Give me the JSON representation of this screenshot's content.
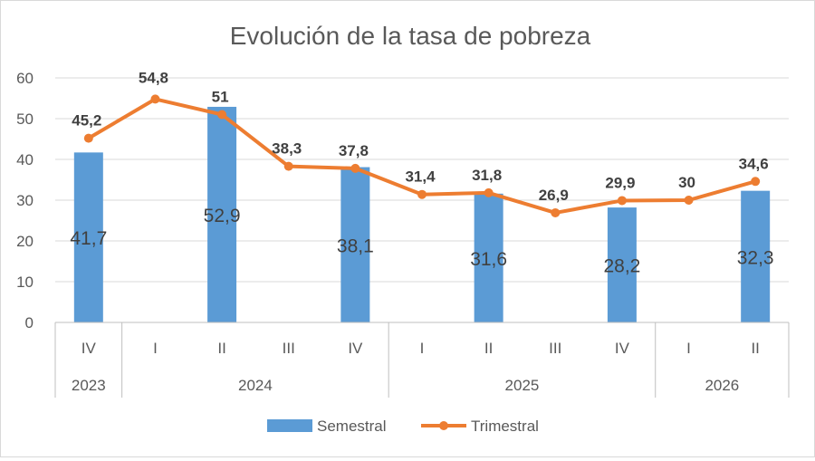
{
  "chart_data": {
    "type": "bar+line",
    "title": "Evolución de la tasa de pobreza",
    "xlabel": "",
    "ylabel": "",
    "ylim": [
      0,
      60
    ],
    "yticks": [
      0,
      10,
      20,
      30,
      40,
      50,
      60
    ],
    "grid": true,
    "legend_position": "bottom",
    "categories": [
      "IV",
      "I",
      "II",
      "III",
      "IV",
      "I",
      "II",
      "III",
      "IV",
      "I",
      "II"
    ],
    "year_groups": [
      {
        "label": "2023",
        "count": 1
      },
      {
        "label": "2024",
        "count": 4
      },
      {
        "label": "2025",
        "count": 4
      },
      {
        "label": "2026",
        "count": 2
      }
    ],
    "series": [
      {
        "name": "Semestral",
        "kind": "bar",
        "color": "#5b9bd5",
        "values": [
          41.7,
          null,
          52.9,
          null,
          38.1,
          null,
          31.6,
          null,
          28.2,
          null,
          32.3
        ],
        "labels": [
          "41,7",
          "",
          "52,9",
          "",
          "38,1",
          "",
          "31,6",
          "",
          "28,2",
          "",
          "32,3"
        ]
      },
      {
        "name": "Trimestral",
        "kind": "line",
        "color": "#ed7d31",
        "values": [
          45.2,
          54.8,
          51,
          38.3,
          37.8,
          31.4,
          31.8,
          26.9,
          29.9,
          30,
          34.6
        ],
        "labels": [
          "45,2",
          "54,8",
          "51",
          "38,3",
          "37,8",
          "31,4",
          "31,8",
          "26,9",
          "29,9",
          "30",
          "34,6"
        ]
      }
    ]
  }
}
